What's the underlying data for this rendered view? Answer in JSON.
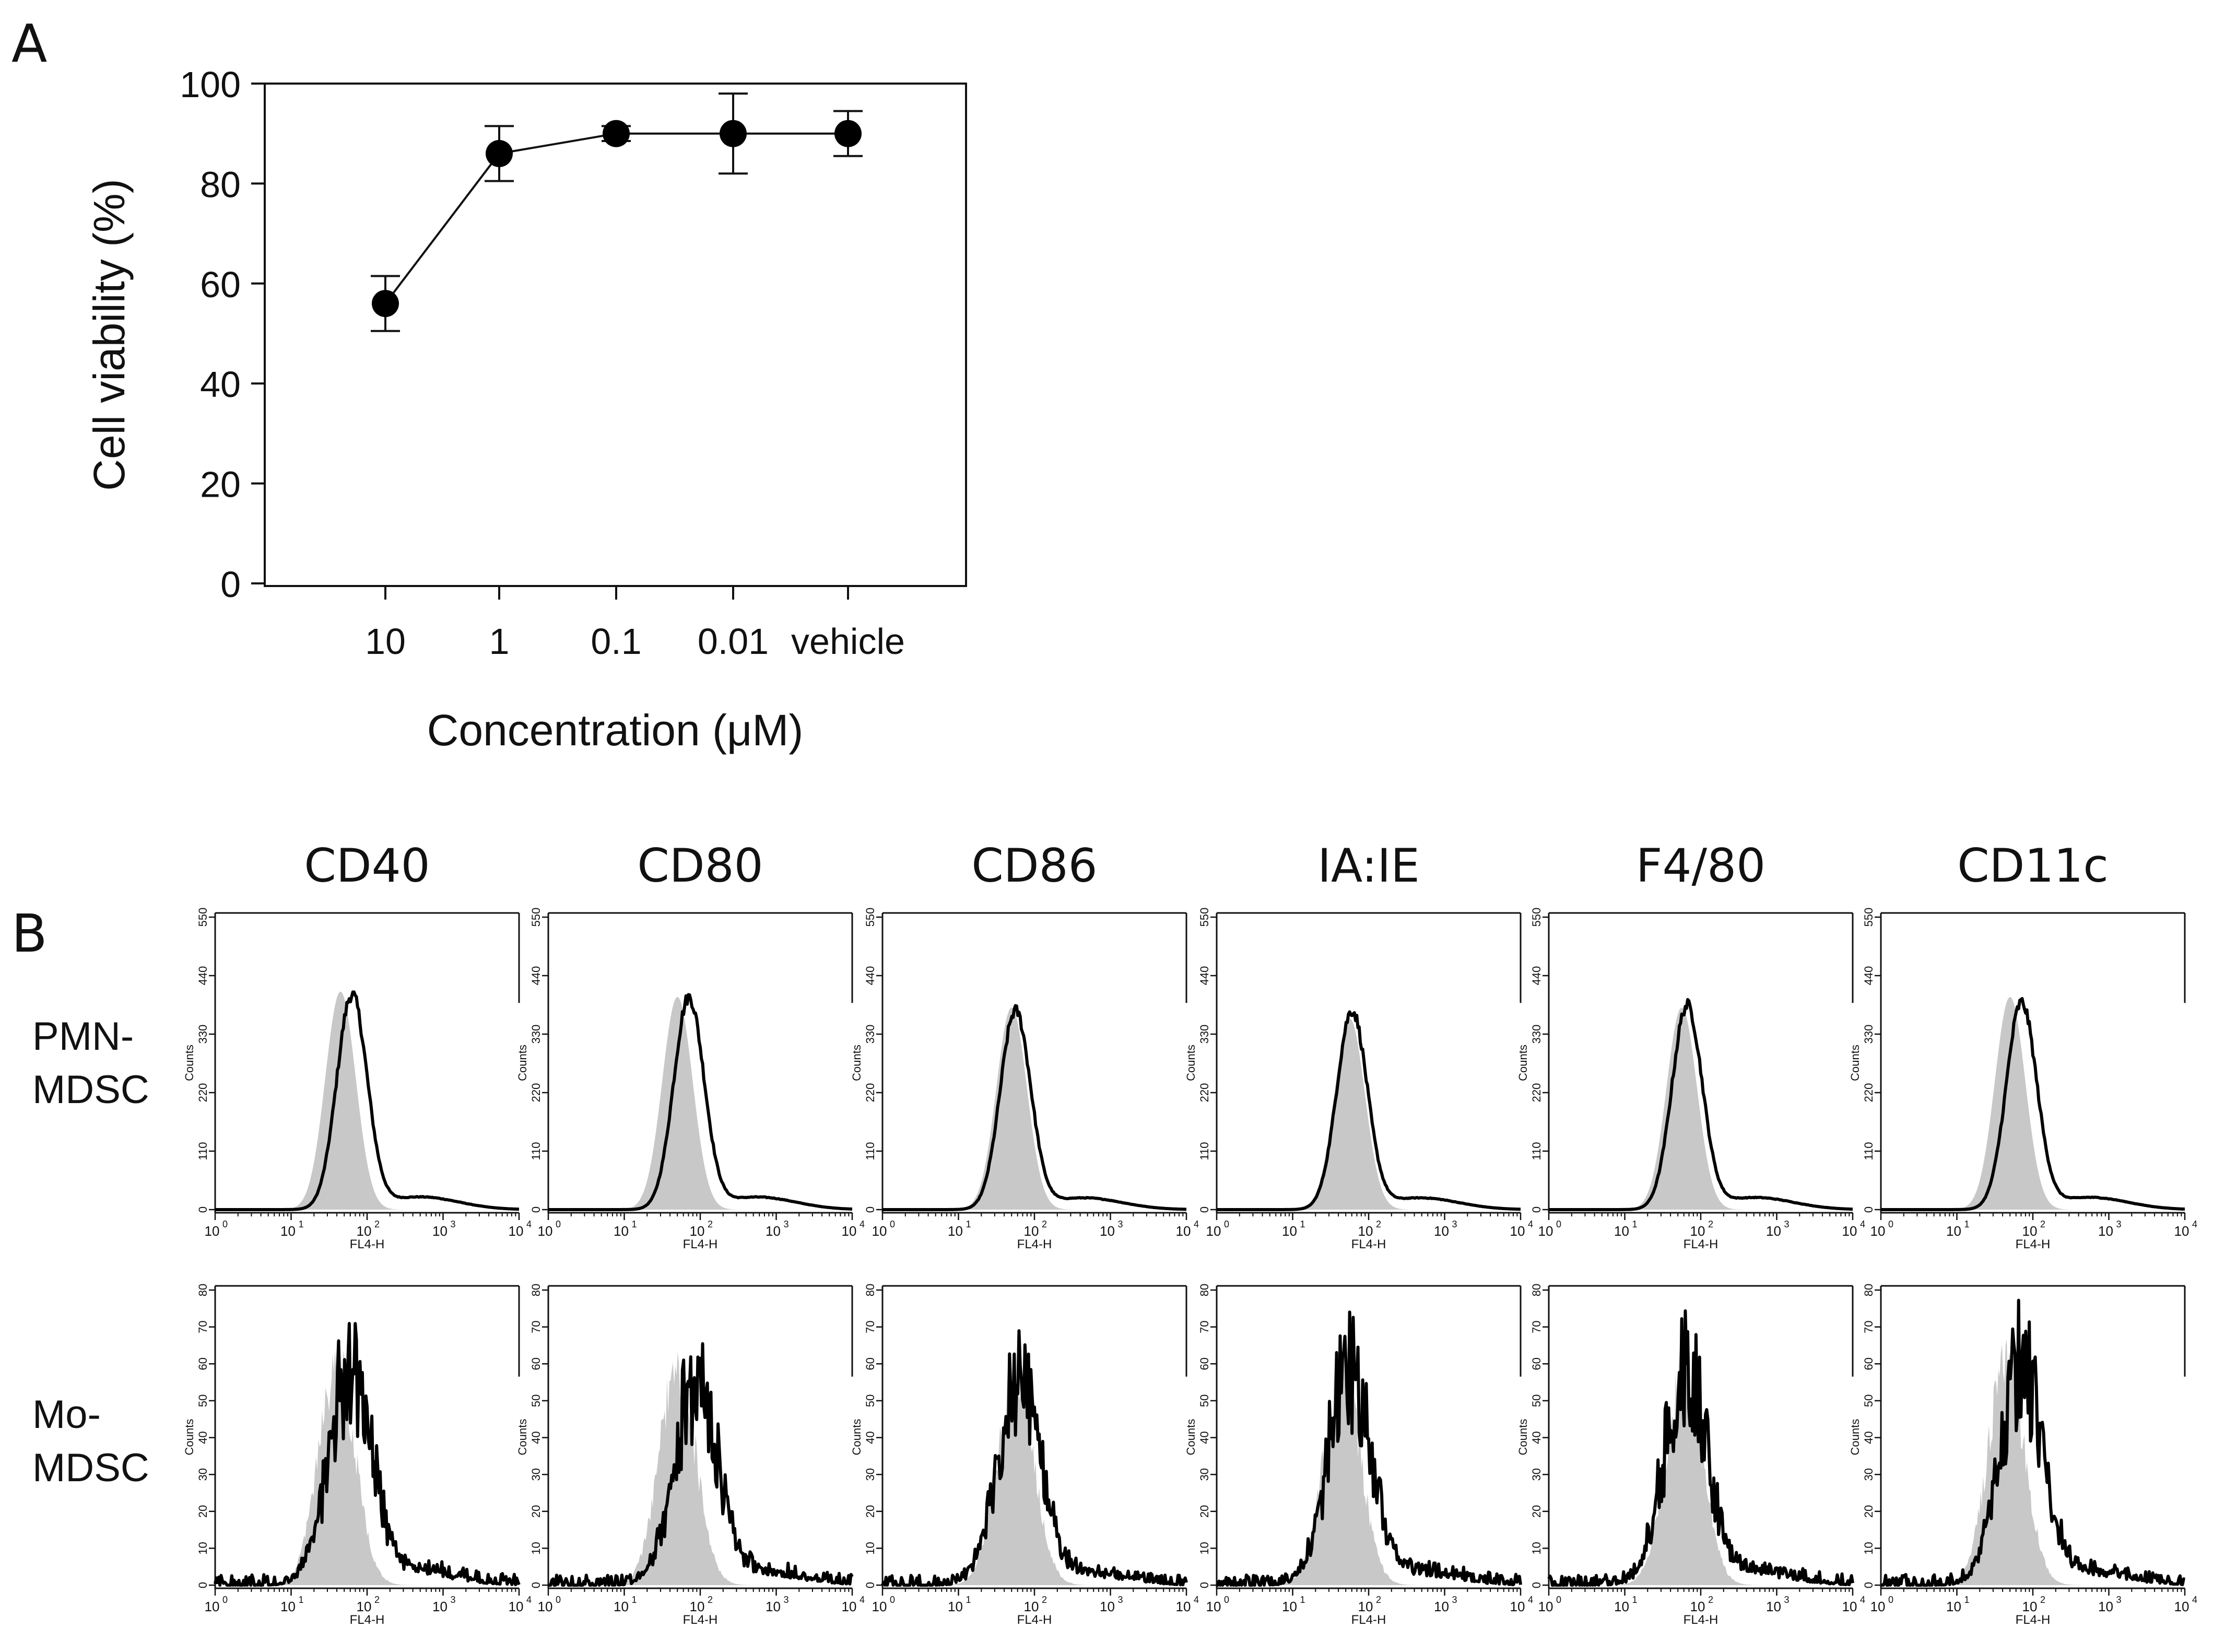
{
  "panel_a": {
    "label": "A",
    "chart_data": {
      "type": "line",
      "categories": [
        "10",
        "1",
        "0.1",
        "0.01",
        "vehicle"
      ],
      "values": [
        56,
        86,
        90,
        90,
        90
      ],
      "error": [
        5.5,
        5.5,
        1.5,
        8,
        4.5
      ],
      "xlabel": "Concentration (μM)",
      "ylabel": "Cell viability (%)",
      "ylim": [
        0,
        100
      ],
      "yticks": [
        "0",
        "20",
        "40",
        "60",
        "80",
        "100"
      ]
    }
  },
  "panel_b": {
    "label": "B",
    "markers": [
      "CD40",
      "CD80",
      "CD86",
      "IA:IE",
      "F4/80",
      "CD11c"
    ],
    "rows": [
      {
        "label_line1": "PMN-",
        "label_line2": "MDSC",
        "yticks": [
          "0",
          "110",
          "220",
          "330",
          "440",
          "550"
        ],
        "ymax": 550
      },
      {
        "label_line1": "Mo-",
        "label_line2": "MDSC",
        "yticks": [
          "0",
          "10",
          "20",
          "30",
          "40",
          "50",
          "60",
          "70",
          "80"
        ],
        "ymax": 80
      }
    ],
    "y_axis_label": "Counts",
    "x_axis_label": "FL4-H",
    "x_tick_exponents": [
      "0",
      "1",
      "2",
      "3",
      "4"
    ],
    "x_tick_base": "10",
    "chart_data": {
      "type": "histogram",
      "x_scale": "log10",
      "xlim": [
        0,
        4
      ],
      "pmn_mdsc": {
        "isotype_peak_log": [
          1.65,
          1.7,
          1.7,
          1.75,
          1.75,
          1.7
        ],
        "isotype_peak_count": [
          410,
          400,
          380,
          360,
          380,
          400
        ],
        "stained_peak_log": [
          1.8,
          1.85,
          1.75,
          1.78,
          1.82,
          1.85
        ],
        "stained_peak_count": [
          400,
          395,
          370,
          370,
          380,
          385
        ]
      },
      "mo_mdsc": {
        "isotype_peak_log": [
          1.6,
          1.7,
          1.75,
          1.65,
          1.78,
          1.65
        ],
        "isotype_peak_count": [
          60,
          58,
          57,
          58,
          58,
          60
        ],
        "stained_peak_log": [
          1.78,
          1.95,
          1.8,
          1.75,
          1.8,
          1.85
        ],
        "stained_peak_count": [
          58,
          55,
          53,
          58,
          57,
          58
        ]
      }
    }
  }
}
